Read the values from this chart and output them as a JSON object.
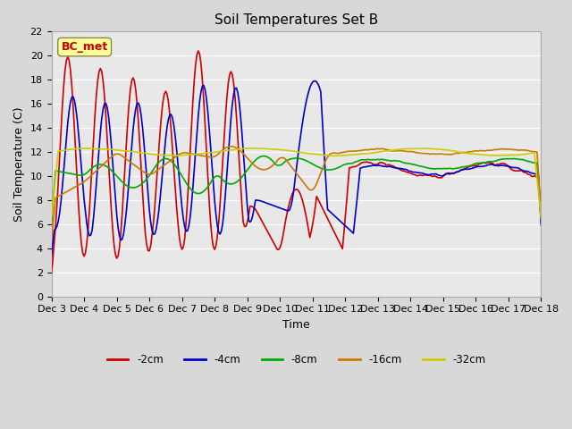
{
  "title": "Soil Temperatures Set B",
  "xlabel": "Time",
  "ylabel": "Soil Temperature (C)",
  "ylim": [
    0,
    22
  ],
  "yticks": [
    0,
    2,
    4,
    6,
    8,
    10,
    12,
    14,
    16,
    18,
    20,
    22
  ],
  "colors": {
    "-2cm": "#cc0000",
    "-4cm": "#0000cc",
    "-8cm": "#00aa00",
    "-16cm": "#cc7700",
    "-32cm": "#cccc00"
  },
  "legend_labels": [
    "-2cm",
    "-4cm",
    "-8cm",
    "-16cm",
    "-32cm"
  ],
  "annotation_text": "BC_met",
  "annotation_color": "#cc0000",
  "annotation_bg": "#ffff99",
  "bg_color": "#e8e8e8",
  "plot_bg": "#f0f0f0",
  "x_tick_labels": [
    "Dec 3",
    "Dec 4",
    "Dec 5",
    "Dec 6",
    "Dec 7",
    "Dec 8",
    "Dec 9",
    "Dec 10",
    "Dec 11",
    "Dec 12",
    "Dec 13",
    "Dec 14",
    "Dec 15",
    "Dec 16",
    "Dec 17",
    "Dec 18"
  ],
  "n_points": 361
}
